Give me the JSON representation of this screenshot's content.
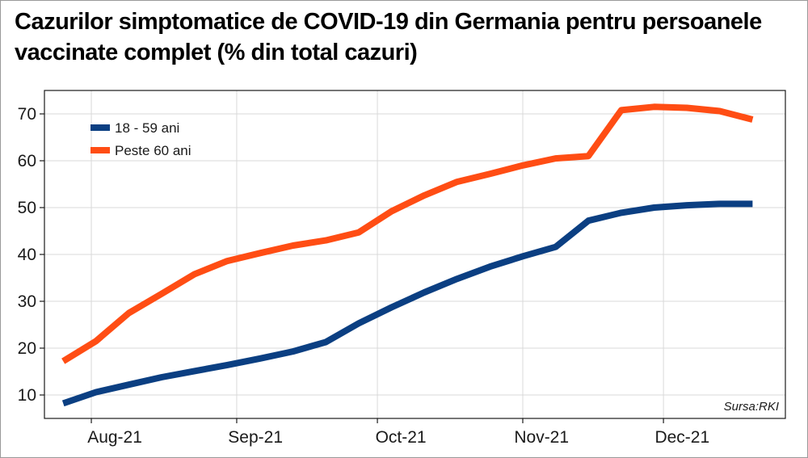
{
  "title_lines": [
    "Cazurilor simptomatice de COVID-19 din Germania pentru persoanele",
    "vaccinate complet (% din total cazuri)"
  ],
  "source": "Sursa:RKI",
  "colors": {
    "series_1": "#0b3f82",
    "series_2": "#ff4d14",
    "grid": "#d9d9d9",
    "axis": "#1a1a1a"
  },
  "chart_data": {
    "type": "line",
    "x_categories": [
      "Aug-21",
      "Sep-21",
      "Oct-21",
      "Nov-21",
      "Dec-21"
    ],
    "ylim": [
      5,
      75
    ],
    "yticks": [
      10,
      20,
      30,
      40,
      50,
      60,
      70
    ],
    "grid": true,
    "legend_position": "top-left",
    "x": [
      "2021-07-26",
      "2021-08-02",
      "2021-08-09",
      "2021-08-16",
      "2021-08-23",
      "2021-08-30",
      "2021-09-06",
      "2021-09-13",
      "2021-09-20",
      "2021-09-27",
      "2021-10-04",
      "2021-10-11",
      "2021-10-18",
      "2021-10-25",
      "2021-11-01",
      "2021-11-08",
      "2021-11-15",
      "2021-11-22",
      "2021-11-29",
      "2021-12-06",
      "2021-12-13",
      "2021-12-20"
    ],
    "series": [
      {
        "name": "18 - 59 ani",
        "values": [
          8.2,
          10.6,
          12.2,
          13.8,
          15.1,
          16.4,
          17.8,
          19.3,
          21.3,
          25.3,
          28.7,
          31.9,
          34.8,
          37.4,
          39.6,
          41.6,
          47.2,
          48.9,
          50.0,
          50.5,
          50.8,
          50.8
        ]
      },
      {
        "name": "Peste 60 ani",
        "values": [
          17.2,
          21.5,
          27.5,
          31.6,
          35.8,
          38.6,
          40.3,
          41.9,
          43.0,
          44.7,
          49.2,
          52.6,
          55.5,
          57.2,
          59.0,
          60.5,
          61.0,
          70.8,
          71.5,
          71.3,
          70.6,
          68.8
        ]
      }
    ]
  }
}
